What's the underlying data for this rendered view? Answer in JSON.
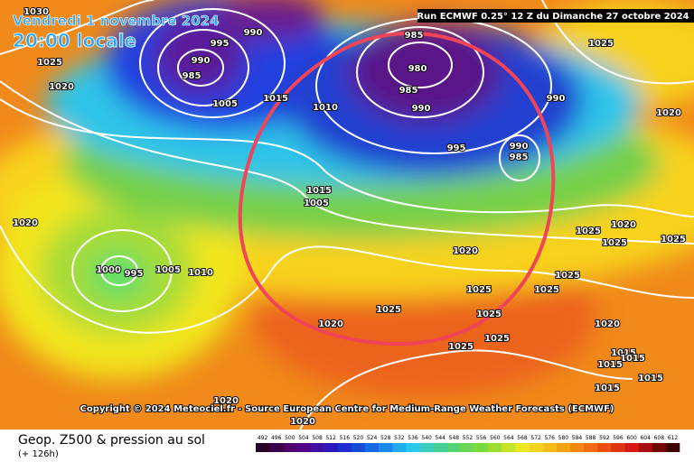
{
  "header": {
    "date": "Vendredi 1 novembre 2024",
    "time": "20:00 locale",
    "run": "Run ECMWF 0.25° 12 Z du Dimanche 27 octobre 2024"
  },
  "map": {
    "isobar_labels": [
      "1030",
      "995",
      "990",
      "990",
      "985",
      "1005",
      "1025",
      "1020",
      "1015",
      "1010",
      "985",
      "980",
      "985",
      "990",
      "995",
      "990",
      "1025",
      "1020",
      "990",
      "985",
      "1015",
      "1005",
      "1020",
      "1000",
      "995",
      "1005",
      "1010",
      "1020",
      "1025",
      "1025",
      "1025",
      "1020",
      "1025",
      "1025",
      "1025",
      "1025",
      "1025",
      "1020",
      "1025",
      "1020",
      "1025",
      "1015",
      "1015",
      "1015",
      "1020",
      "1020",
      "1015",
      "1015"
    ],
    "copyright": "Copyright © 2024 Meteociel.fr - Source European Centre for Medium-Range Weather Forecasts (ECMWF)"
  },
  "footer": {
    "title": "Geop. Z500 & pression au sol",
    "lead": "(+ 126h)"
  },
  "colorbar": {
    "ticks": [
      492,
      496,
      500,
      504,
      508,
      512,
      516,
      520,
      524,
      528,
      532,
      536,
      540,
      544,
      548,
      552,
      556,
      560,
      564,
      568,
      572,
      576,
      580,
      584,
      588,
      592,
      596,
      600,
      604,
      608,
      612
    ]
  }
}
